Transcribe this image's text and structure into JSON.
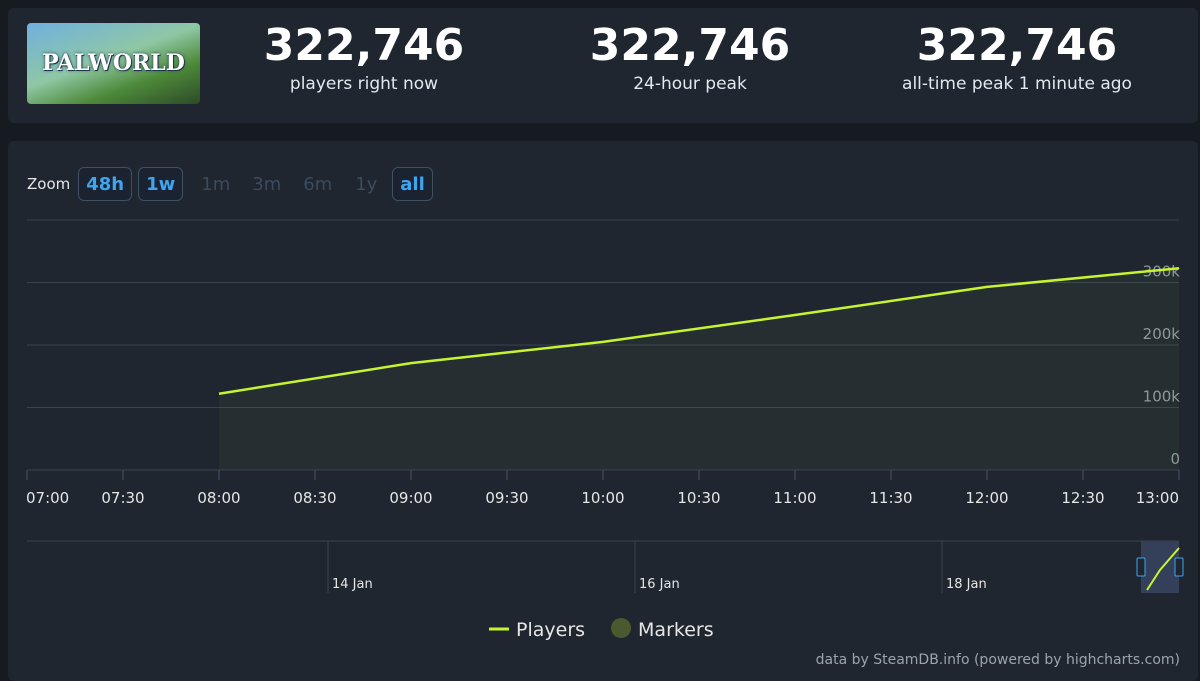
{
  "header": {
    "image_label": "PALWORLD",
    "stats": [
      {
        "value": "322,746",
        "label": "players right now"
      },
      {
        "value": "322,746",
        "label": "24-hour peak"
      },
      {
        "value": "322,746",
        "label": "all-time peak 1 minute ago"
      }
    ]
  },
  "zoom": {
    "label": "Zoom",
    "buttons": [
      {
        "label": "48h",
        "enabled": true
      },
      {
        "label": "1w",
        "enabled": true
      },
      {
        "label": "1m",
        "enabled": false
      },
      {
        "label": "3m",
        "enabled": false
      },
      {
        "label": "6m",
        "enabled": false
      },
      {
        "label": "1y",
        "enabled": false
      },
      {
        "label": "all",
        "enabled": true
      }
    ]
  },
  "chart_data": {
    "type": "line",
    "x": [
      "08:00",
      "09:00",
      "10:00",
      "11:00",
      "12:00",
      "13:00"
    ],
    "xlim": [
      "07:00",
      "13:00"
    ],
    "xticks": [
      "07:00",
      "07:30",
      "08:00",
      "08:30",
      "09:00",
      "09:30",
      "10:00",
      "10:30",
      "11:00",
      "11:30",
      "12:00",
      "12:30",
      "13:00"
    ],
    "ylim": [
      0,
      400000
    ],
    "yticks": [
      {
        "value": 0,
        "label": "0"
      },
      {
        "value": 100000,
        "label": "100k"
      },
      {
        "value": 200000,
        "label": "200k"
      },
      {
        "value": 300000,
        "label": "300k"
      }
    ],
    "grid": true,
    "series": [
      {
        "name": "Players",
        "type": "line",
        "color": "#c6f431",
        "values": [
          122000,
          171000,
          205000,
          248000,
          293000,
          322746
        ]
      },
      {
        "name": "Markers",
        "type": "scatter",
        "color": "#4a5a2e",
        "values": [
          null,
          null,
          null,
          null,
          null,
          null
        ]
      }
    ],
    "navigator_labels": [
      "14 Jan",
      "16 Jan",
      "18 Jan"
    ],
    "credit": "data by SteamDB.info (powered by highcharts.com)"
  }
}
